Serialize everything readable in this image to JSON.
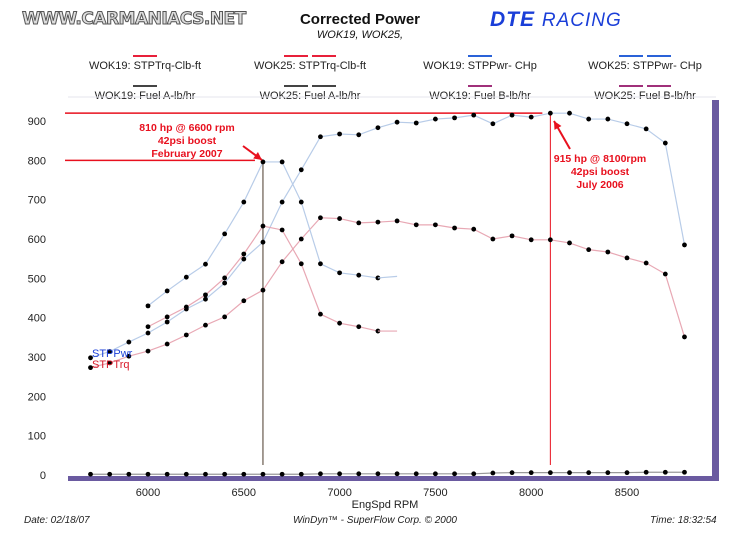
{
  "header": {
    "site": "WWW.CARMANIACS.NET",
    "brand_a": "DTE",
    "brand_b": "RACING"
  },
  "legend": [
    {
      "label": "WOK19: STPTrq-Clb-ft",
      "color": "#e8203a",
      "double": false
    },
    {
      "label": "WOK25: STPTrq-Clb-ft",
      "color": "#e8203a",
      "double": true
    },
    {
      "label": "WOK19: STPPwr- CHp",
      "color": "#2a62d8",
      "double": false
    },
    {
      "label": "WOK25: STPPwr- CHp",
      "color": "#2a62d8",
      "double": true
    },
    {
      "label": "WOK19: Fuel A-lb/hr",
      "color": "#444444",
      "double": false
    },
    {
      "label": "WOK25: Fuel A-lb/hr",
      "color": "#444444",
      "double": true
    },
    {
      "label": "WOK19: Fuel B-lb/hr",
      "color": "#a0307a",
      "double": false
    },
    {
      "label": "WOK25: Fuel B-lb/hr",
      "color": "#a0307a",
      "double": true
    }
  ],
  "footer": {
    "date": "Date: 02/18/07",
    "software": "WinDyn™ - SuperFlow Corp. © 2000",
    "time": "Time: 18:32:54"
  },
  "chart_data": {
    "type": "line",
    "title": "Corrected Power",
    "subtitle": "WOK19, WOK25,",
    "xlabel": "EngSpd  RPM",
    "ylabel": "",
    "xlim": [
      5600,
      9000
    ],
    "ylim": [
      0,
      950
    ],
    "xticks": [
      6000,
      6500,
      7000,
      7500,
      8000,
      8500
    ],
    "yticks": [
      0,
      100,
      200,
      300,
      400,
      500,
      600,
      700,
      800,
      900
    ],
    "grid": false,
    "axis_series_labels": [
      {
        "text": "STPPwr",
        "color": "#1a3ed8"
      },
      {
        "text": "STPTrq",
        "color": "#d81a2a"
      }
    ],
    "series": [
      {
        "name": "WOK19: STPPwr- CHp",
        "color": "#b8cce8",
        "x": [
          5700,
          5800,
          5900,
          6000,
          6100,
          6200,
          6300,
          6400,
          6500,
          6600,
          6700,
          6800,
          6900,
          7000,
          7100,
          7200,
          7300,
          7400,
          7500,
          7600,
          7700,
          7800,
          7900,
          8000,
          8100,
          8200,
          8300,
          8400,
          8500,
          8600,
          8700,
          8800
        ],
        "y": [
          298,
          314,
          338,
          361,
          389,
          422,
          447,
          488,
          549,
          592,
          694,
          776,
          860,
          867,
          865,
          883,
          897,
          895,
          905,
          908,
          915,
          893,
          915,
          910,
          920,
          920,
          905,
          905,
          893,
          880,
          844,
          585
        ]
      },
      {
        "name": "WOK19: STPTrq-Clb-ft",
        "color": "#e8a8b4",
        "x": [
          5700,
          5800,
          5900,
          6000,
          6100,
          6200,
          6300,
          6400,
          6500,
          6600,
          6700,
          6800,
          6900,
          7000,
          7100,
          7200,
          7300,
          7400,
          7500,
          7600,
          7700,
          7800,
          7900,
          8000,
          8100,
          8200,
          8300,
          8400,
          8500,
          8600,
          8700,
          8800
        ],
        "y": [
          273,
          285,
          302,
          315,
          333,
          356,
          381,
          402,
          443,
          470,
          542,
          600,
          654,
          652,
          641,
          643,
          646,
          636,
          636,
          628,
          625,
          600,
          608,
          598,
          598,
          590,
          573,
          567,
          552,
          539,
          511,
          351
        ]
      },
      {
        "name": "WOK25: STPPwr- CHp",
        "color": "#b8cce8",
        "x": [
          6000,
          6100,
          6200,
          6300,
          6400,
          6500,
          6600,
          6700,
          6800,
          6900,
          7000,
          7100,
          7200
        ],
        "y": [
          430,
          468,
          503,
          536,
          613,
          694,
          796,
          796,
          694,
          537,
          514,
          508,
          501
        ]
      },
      {
        "name": "WOK25: STPTrq-Clb-ft",
        "color": "#e8a8b4",
        "x": [
          6000,
          6100,
          6200,
          6300,
          6400,
          6500,
          6600,
          6700,
          6800,
          6900,
          7000,
          7100,
          7200
        ],
        "y": [
          377,
          402,
          427,
          458,
          501,
          562,
          633,
          623,
          537,
          409,
          386,
          377,
          366
        ]
      },
      {
        "name": "WOK19: Fuel A-lb/hr",
        "color": "#999999",
        "x": [
          5700,
          5800,
          5900,
          6000,
          6100,
          6200,
          6300,
          6400,
          6500,
          6600,
          6700,
          6800,
          6900,
          7000,
          7100,
          7200,
          7300,
          7400,
          7500,
          7600,
          7700,
          7800,
          7900,
          8000,
          8100,
          8200,
          8300,
          8400,
          8500,
          8600,
          8700,
          8800
        ],
        "y": [
          2,
          2,
          2,
          2,
          2,
          2,
          2,
          2,
          2,
          2,
          2,
          2,
          3,
          3,
          3,
          3,
          3,
          3,
          3,
          3,
          3,
          5,
          6,
          6,
          6,
          6,
          6,
          6,
          6,
          7,
          7,
          7
        ]
      }
    ],
    "annotations": [
      {
        "lines": [
          "810 hp @ 6600 rpm",
          "42psi boost",
          "February 2007"
        ],
        "rpm": 6600,
        "value": 800,
        "color": "#e8101e"
      },
      {
        "lines": [
          "915 hp @ 8100rpm",
          "42psi boost",
          "July 2006"
        ],
        "rpm": 8100,
        "value": 920,
        "color": "#e8101e"
      }
    ]
  }
}
